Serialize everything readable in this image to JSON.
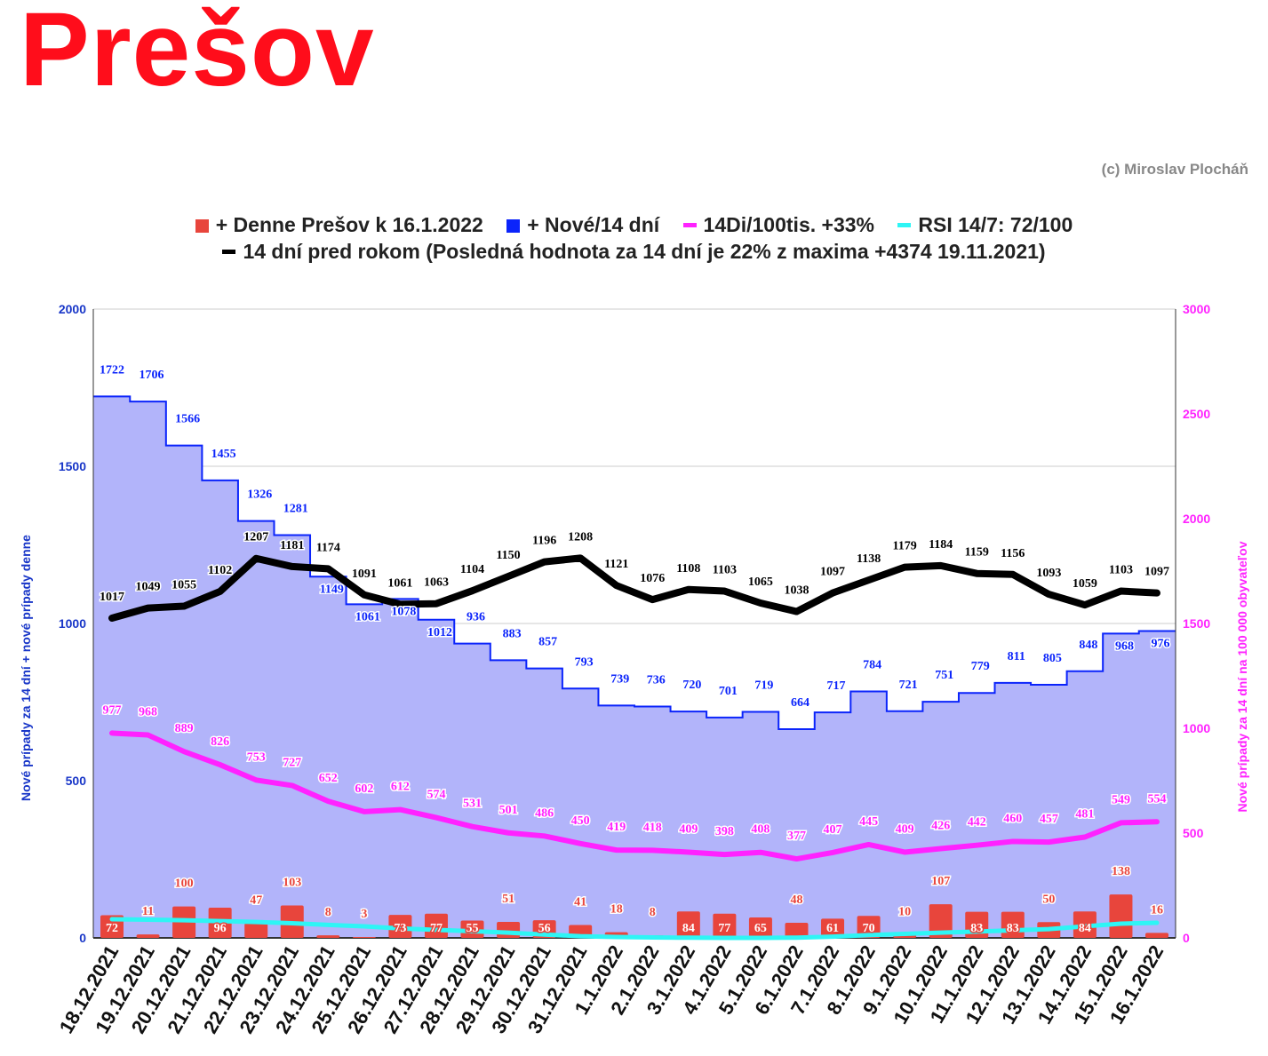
{
  "title": "Prešov",
  "credit": "(c) Miroslav Plocháň",
  "legend": [
    {
      "label": "+ Denne Prešov k 16.1.2022",
      "color": "#e8453c",
      "shape": "square"
    },
    {
      "label": "+ Nové/14 dní",
      "color": "#0b24fb",
      "shape": "square"
    },
    {
      "label": "14Di/100tis. +33%",
      "color": "#ff22ff",
      "shape": "line"
    },
    {
      "label": "RSI 14/7: 72/100",
      "color": "#2ef5f5",
      "shape": "line"
    },
    {
      "label": "14 dní pred rokom (Posledná hodnota za 14 dní je 22% z maxima +4374 19.11.2021)",
      "color": "#000000",
      "shape": "line"
    }
  ],
  "chart_data": {
    "type": "bar+line",
    "ylabel": "Nové prípady za 14 dní + nové prípady denne",
    "y2label": "Nové prípady za 14 dní na 100 000 obyvateľov",
    "ylim": [
      0,
      2000
    ],
    "yticks": [
      0,
      500,
      1000,
      1500,
      2000
    ],
    "y2lim": [
      0,
      3000
    ],
    "y2ticks": [
      0,
      500,
      1000,
      1500,
      2000,
      2500,
      3000
    ],
    "grid": true,
    "categories": [
      "18.12.2021",
      "19.12.2021",
      "20.12.2021",
      "21.12.2021",
      "22.12.2021",
      "23.12.2021",
      "24.12.2021",
      "25.12.2021",
      "26.12.2021",
      "27.12.2021",
      "28.12.2021",
      "29.12.2021",
      "30.12.2021",
      "31.12.2021",
      "1.1.2022",
      "2.1.2022",
      "3.1.2022",
      "4.1.2022",
      "5.1.2022",
      "6.1.2022",
      "7.1.2022",
      "8.1.2022",
      "9.1.2022",
      "10.1.2022",
      "11.1.2022",
      "12.1.2022",
      "13.1.2022",
      "14.1.2022",
      "15.1.2022",
      "16.1.2022"
    ],
    "series": [
      {
        "name": "+ Denne Prešov k 16.1.2022",
        "type": "bar",
        "axis": "left",
        "color": "#e8453c",
        "values": [
          72,
          11,
          100,
          96,
          47,
          103,
          8,
          3,
          73,
          77,
          55,
          51,
          56,
          41,
          18,
          8,
          84,
          77,
          65,
          48,
          61,
          70,
          10,
          107,
          83,
          83,
          50,
          84,
          138,
          16
        ]
      },
      {
        "name": "+ Nové/14 dní",
        "type": "steparea",
        "axis": "left",
        "color": "#0b24fb",
        "fill": "#b2b4fa",
        "values": [
          1722,
          1706,
          1566,
          1455,
          1326,
          1281,
          1149,
          1061,
          1078,
          1012,
          936,
          883,
          857,
          793,
          739,
          736,
          720,
          701,
          719,
          664,
          717,
          784,
          721,
          751,
          779,
          811,
          805,
          848,
          968,
          976
        ]
      },
      {
        "name": "14Di/100tis. +33%",
        "type": "line",
        "axis": "right",
        "color": "#ff22ff",
        "values": [
          977,
          968,
          889,
          826,
          753,
          727,
          652,
          602,
          612,
          574,
          531,
          501,
          486,
          450,
          419,
          418,
          409,
          398,
          408,
          377,
          407,
          445,
          409,
          426,
          442,
          460,
          457,
          481,
          549,
          554
        ]
      },
      {
        "name": "RSI 14/7",
        "type": "line",
        "axis": "right",
        "color": "#2ef5f5",
        "values": [
          89,
          87,
          84,
          80,
          76,
          70,
          62,
          55,
          45,
          38,
          32,
          25,
          16,
          8,
          4,
          2,
          1,
          0,
          0,
          1,
          6,
          13,
          19,
          25,
          30,
          36,
          42,
          55,
          68,
          72
        ]
      },
      {
        "name": "14 dní pred rokom",
        "type": "line",
        "axis": "left",
        "color": "#000000",
        "values": [
          1017,
          1049,
          1055,
          1102,
          1207,
          1181,
          1174,
          1091,
          1061,
          1063,
          1104,
          1150,
          1196,
          1208,
          1121,
          1076,
          1108,
          1103,
          1065,
          1038,
          1097,
          1138,
          1179,
          1184,
          1159,
          1156,
          1093,
          1059,
          1103,
          1097
        ]
      }
    ]
  }
}
